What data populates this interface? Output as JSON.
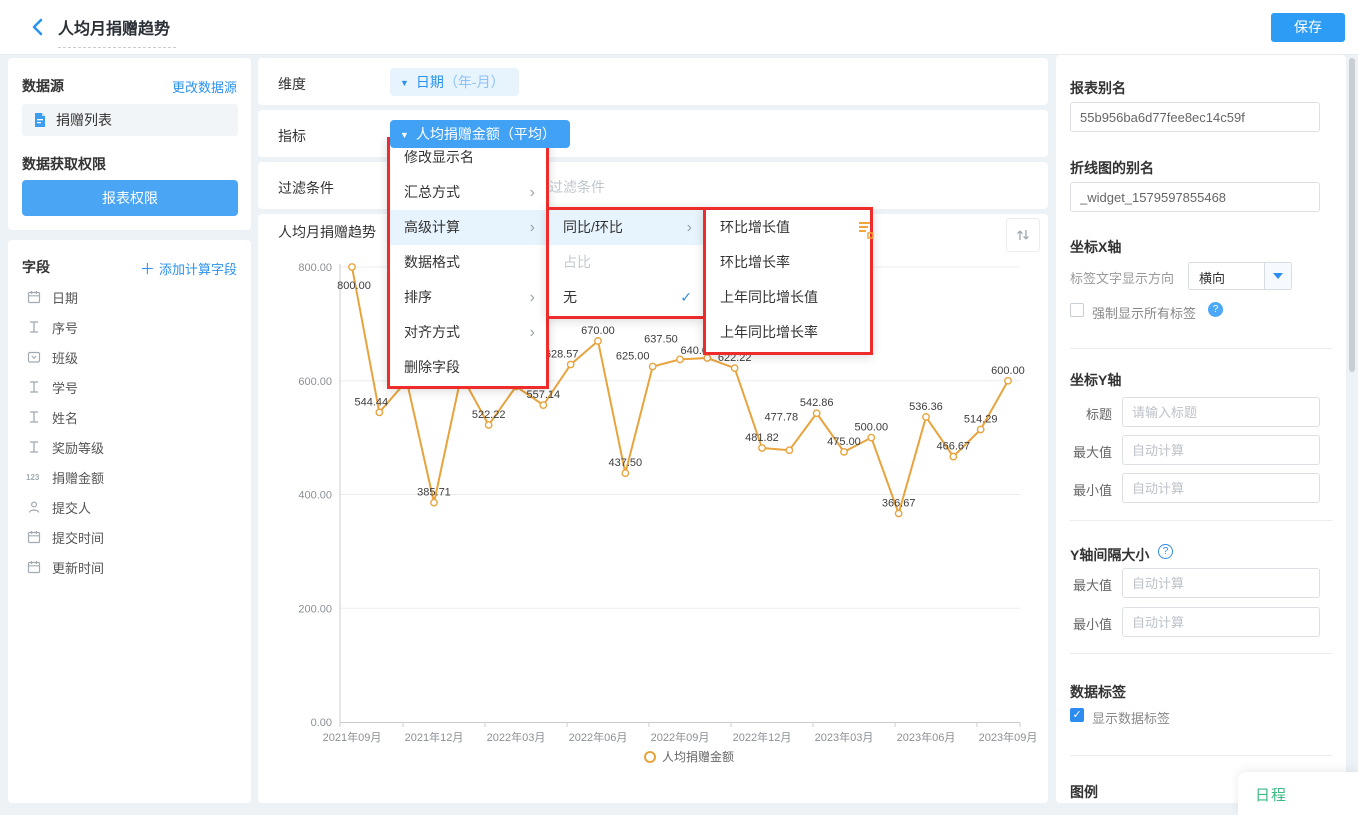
{
  "header": {
    "title": "人均月捐赠趋势",
    "save_label": "保存"
  },
  "sidebar": {
    "datasource_title": "数据源",
    "change_link": "更改数据源",
    "datasource_item": "捐赠列表",
    "permission_title": "数据获取权限",
    "permission_button": "报表权限",
    "fields_title": "字段",
    "add_calc_label": "添加计算字段",
    "fields": [
      {
        "icon": "calendar",
        "label": "日期"
      },
      {
        "icon": "text",
        "label": "序号"
      },
      {
        "icon": "select",
        "label": "班级"
      },
      {
        "icon": "text",
        "label": "学号"
      },
      {
        "icon": "text",
        "label": "姓名"
      },
      {
        "icon": "text",
        "label": "奖励等级"
      },
      {
        "icon": "number",
        "label": "捐赠金额"
      },
      {
        "icon": "user",
        "label": "提交人"
      },
      {
        "icon": "calendar",
        "label": "提交时间"
      },
      {
        "icon": "calendar",
        "label": "更新时间"
      }
    ]
  },
  "config": {
    "dimension_label": "维度",
    "dimension_tag_main": "日期",
    "dimension_tag_sub": "（年-月）",
    "metric_label": "指标",
    "metric_tag": "人均捐赠金额（平均）",
    "filter_label": "过滤条件",
    "filter_placeholder": "添加过滤条件"
  },
  "menus": {
    "context_menu": [
      {
        "label": "修改显示名"
      },
      {
        "label": "汇总方式",
        "arrow": true
      },
      {
        "label": "高级计算",
        "arrow": true,
        "highlighted": true
      },
      {
        "label": "数据格式"
      },
      {
        "label": "排序",
        "arrow": true
      },
      {
        "label": "对齐方式",
        "arrow": true
      },
      {
        "label": "删除字段"
      }
    ],
    "submenu": [
      {
        "label": "同比/环比",
        "arrow": true,
        "highlighted": true
      },
      {
        "label": "占比",
        "disabled": true
      },
      {
        "label": "无",
        "checked": true
      }
    ],
    "subsubmenu": [
      {
        "label": "环比增长值"
      },
      {
        "label": "环比增长率"
      },
      {
        "label": "上年同比增长值"
      },
      {
        "label": "上年同比增长率"
      }
    ]
  },
  "chart_data": {
    "type": "line",
    "title": "人均月捐赠趋势",
    "series_name": "人均捐赠金额",
    "x": [
      "2021年09月",
      "2021年10月",
      "2021年11月",
      "2021年12月",
      "2022年01月",
      "2022年02月",
      "2022年03月",
      "2022年04月",
      "2022年05月",
      "2022年06月",
      "2022年07月",
      "2022年08月",
      "2022年09月",
      "2022年10月",
      "2022年11月",
      "2022年12月",
      "2023年01月",
      "2023年02月",
      "2023年03月",
      "2023年04月",
      "2023年05月",
      "2023年06月",
      "2023年07月",
      "2023年08月",
      "2023年09月"
    ],
    "values": [
      800.0,
      544.44,
      600.0,
      385.71,
      610.0,
      522.22,
      590.0,
      557.14,
      628.57,
      670.0,
      437.5,
      625.0,
      637.5,
      640.0,
      622.22,
      481.82,
      477.78,
      542.86,
      475.0,
      500.0,
      366.67,
      536.36,
      466.67,
      514.29,
      600.0
    ],
    "hidden_label_indices_behind_menu": [
      2,
      4,
      6
    ],
    "x_tick_labels": [
      "2021年09月",
      "2021年12月",
      "2022年03月",
      "2022年06月",
      "2022年09月",
      "2022年12月",
      "2023年03月",
      "2023年06月",
      "2023年09月"
    ],
    "ylim": [
      0,
      800
    ],
    "yticks": [
      0,
      200,
      400,
      600,
      800
    ],
    "grid": true,
    "legend_position": "bottom",
    "line_color": "#e8a33d"
  },
  "panel": {
    "report_alias": {
      "label": "报表别名",
      "value": "55b956ba6d77fee8ec14c59f"
    },
    "widget_alias": {
      "label": "折线图的别名",
      "value": "_widget_1579597855468"
    },
    "x_axis": {
      "title": "坐标X轴",
      "direction_label": "标签文字显示方向",
      "direction_value": "横向",
      "force_label": "强制显示所有标签",
      "force_checked": false
    },
    "y_axis": {
      "title": "坐标Y轴",
      "rows": [
        {
          "label": "标题",
          "placeholder": "请输入标题"
        },
        {
          "label": "最大值",
          "placeholder": "自动计算"
        },
        {
          "label": "最小值",
          "placeholder": "自动计算"
        }
      ]
    },
    "y_interval": {
      "title": "Y轴间隔大小",
      "rows": [
        {
          "label": "最大值",
          "placeholder": "自动计算"
        },
        {
          "label": "最小值",
          "placeholder": "自动计算"
        }
      ]
    },
    "data_label": {
      "title": "数据标签",
      "checkbox_label": "显示数据标签",
      "checked": true
    },
    "legend": {
      "title": "图例"
    },
    "help_icon": "?"
  },
  "schedule_popup": {
    "label": "日程"
  },
  "colors": {
    "accent": "#2d9cf4",
    "link": "#2b93ee",
    "line": "#e8a33d",
    "annotation_box": "#ee2c2c",
    "menu_highlight": "#e8f4fd",
    "green": "#3cba83"
  }
}
